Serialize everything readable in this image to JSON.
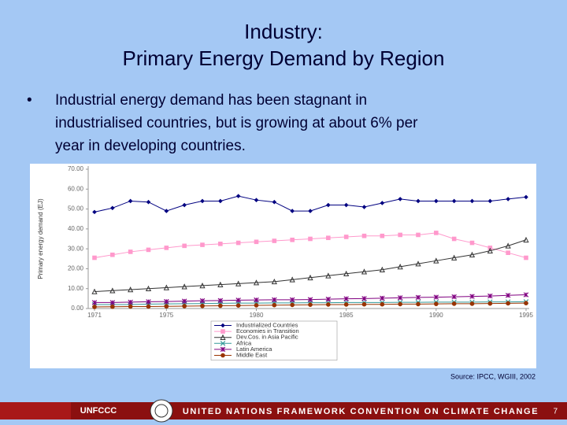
{
  "slide": {
    "title": [
      "Industry:",
      "Primary Energy Demand by Region"
    ],
    "bullet": [
      "Industrial energy demand has been stagnant in",
      "industrialised countries, but is growing at about 6% per",
      "year in developing countries."
    ],
    "source": "Source: IPCC, WGIII, 2002",
    "logo": "UNFCCC",
    "footer": "UNITED NATIONS FRAMEWORK CONVENTION ON CLIMATE CHANGE",
    "page_number": "7"
  },
  "chart_data": {
    "type": "line",
    "y_label": "Primary energy demand (EJ)",
    "x": [
      1971,
      1972,
      1973,
      1974,
      1975,
      1976,
      1977,
      1978,
      1979,
      1980,
      1981,
      1982,
      1983,
      1984,
      1985,
      1986,
      1987,
      1988,
      1989,
      1990,
      1991,
      1992,
      1993,
      1994,
      1995
    ],
    "xlim": [
      1971,
      1995
    ],
    "xticks": [
      1971,
      1975,
      1980,
      1985,
      1990,
      1995
    ],
    "ylim": [
      0,
      70
    ],
    "yticks": [
      {
        "value": 0,
        "label": "0.00"
      },
      {
        "value": 10,
        "label": "10.00"
      },
      {
        "value": 20,
        "label": "20.00"
      },
      {
        "value": 30,
        "label": "30.00"
      },
      {
        "value": 40,
        "label": "40.00"
      },
      {
        "value": 50,
        "label": "50.00"
      },
      {
        "value": 60,
        "label": "60.00"
      },
      {
        "value": 70,
        "label": "70.00"
      }
    ],
    "series": [
      {
        "name": "Industrialized Countries",
        "color": "#000080",
        "marker": "diamond",
        "values": [
          48.5,
          50.5,
          54,
          53.5,
          49,
          52,
          54,
          54,
          56.5,
          54.5,
          53.5,
          49,
          49,
          52,
          52,
          51,
          53,
          55,
          54,
          54,
          54,
          54,
          54,
          55,
          56
        ]
      },
      {
        "name": "Economies in Transition",
        "color": "#ff99cc",
        "marker": "square",
        "values": [
          25.5,
          27,
          28.5,
          29.5,
          30.5,
          31.5,
          32,
          32.5,
          33,
          33.5,
          34,
          34.5,
          35,
          35.5,
          36,
          36.5,
          36.5,
          37,
          37,
          38,
          35,
          33,
          30.5,
          28,
          25.5
        ]
      },
      {
        "name": "Dev.Cos. in Asia Pacific",
        "color": "#333333",
        "marker": "triangle",
        "values": [
          8.5,
          9,
          9.5,
          10,
          10.5,
          11,
          11.5,
          12,
          12.5,
          13,
          13.5,
          14.5,
          15.5,
          16.5,
          17.5,
          18.5,
          19.5,
          21,
          22.5,
          24,
          25.5,
          27,
          29,
          31.5,
          34.5
        ]
      },
      {
        "name": "Africa",
        "color": "#339999",
        "marker": "x",
        "values": [
          2,
          2,
          2,
          2.2,
          2.3,
          2.4,
          2.5,
          2.6,
          2.7,
          2.7,
          2.8,
          2.8,
          2.9,
          2.9,
          3,
          3,
          3,
          3.1,
          3.1,
          3.2,
          3.2,
          3.2,
          3.3,
          3.3,
          3.4
        ]
      },
      {
        "name": "Latin America",
        "color": "#800080",
        "marker": "star",
        "values": [
          3,
          3,
          3.2,
          3.4,
          3.5,
          3.7,
          3.9,
          4,
          4.2,
          4.3,
          4.4,
          4.4,
          4.5,
          4.7,
          4.9,
          5,
          5.2,
          5.4,
          5.6,
          5.7,
          5.9,
          6.1,
          6.3,
          6.6,
          6.9
        ]
      },
      {
        "name": "Middle East",
        "color": "#993300",
        "marker": "circle",
        "values": [
          0.8,
          0.9,
          1,
          1,
          1.1,
          1.2,
          1.3,
          1.4,
          1.5,
          1.6,
          1.7,
          1.8,
          1.9,
          2,
          2,
          2.1,
          2.1,
          2.2,
          2.2,
          2.3,
          2.4,
          2.4,
          2.5,
          2.6,
          2.7
        ]
      }
    ],
    "grid": false
  }
}
